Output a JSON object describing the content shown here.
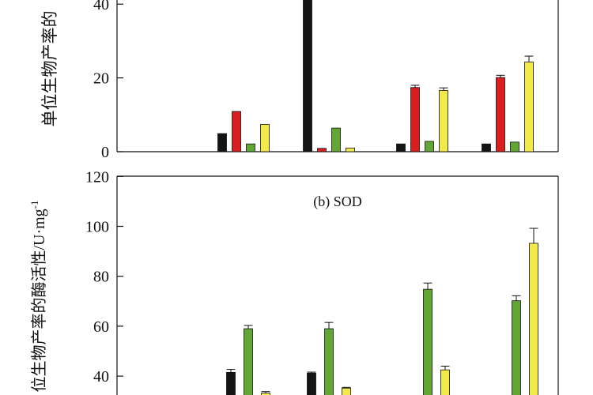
{
  "colors": {
    "black": "#141414",
    "red": "#d81f1f",
    "green": "#62a636",
    "yellow": "#f2ea4a",
    "axis": "#111111"
  },
  "chart_data": [
    {
      "type": "bar",
      "title": "",
      "ylabel": "单位生物产率的",
      "ylim": [
        0,
        40
      ],
      "yticks": [
        0,
        20,
        40
      ],
      "bar_colors": [
        "#141414",
        "#d81f1f",
        "#62a636",
        "#f2ea4a"
      ],
      "groups": [
        {
          "values": [
            null,
            null,
            null,
            null
          ],
          "errors": [
            0,
            0,
            0,
            0
          ]
        },
        {
          "values": [
            4.9,
            10.9,
            2.1,
            7.4
          ],
          "errors": [
            0,
            0,
            0,
            0
          ]
        },
        {
          "values": [
            43,
            0.9,
            6.4,
            1.0
          ],
          "errors": [
            0,
            0,
            0,
            0
          ]
        },
        {
          "values": [
            2.1,
            17.4,
            2.8,
            16.6
          ],
          "errors": [
            0,
            0.6,
            0,
            0.7
          ]
        },
        {
          "values": [
            2.1,
            20.1,
            2.6,
            24.3
          ],
          "errors": [
            0,
            0.6,
            0,
            1.6
          ]
        }
      ]
    },
    {
      "type": "bar",
      "title": "(b) SOD",
      "ylabel": "位生物产率的酶活性/U·mg",
      "ylabel_sup": "-1",
      "ylim": [
        30,
        120
      ],
      "yticks": [
        40,
        60,
        80,
        100,
        120
      ],
      "bar_colors": [
        "#141414",
        "#62a636",
        "#f2ea4a"
      ],
      "groups": [
        {
          "values": [
            null,
            null,
            null
          ],
          "errors": [
            0,
            0,
            0
          ]
        },
        {
          "values": [
            41.5,
            59.0,
            33.2
          ],
          "errors": [
            1.2,
            1.3,
            0.6
          ]
        },
        {
          "values": [
            41.2,
            59.0,
            35.2
          ],
          "errors": [
            0.4,
            2.5,
            0.3
          ]
        },
        {
          "values": [
            null,
            74.8,
            42.5
          ],
          "errors": [
            0,
            2.5,
            1.5
          ]
        },
        {
          "values": [
            null,
            70.2,
            93.2
          ],
          "errors": [
            0,
            2.0,
            6.0
          ]
        }
      ]
    }
  ]
}
